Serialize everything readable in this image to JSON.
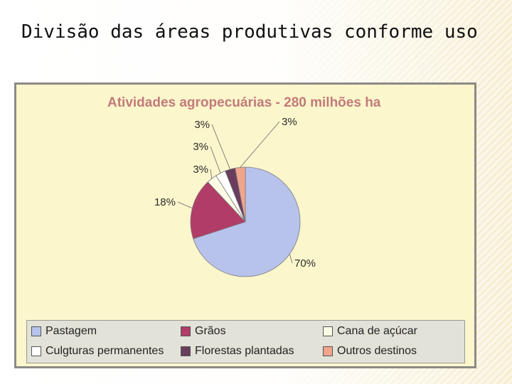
{
  "slide": {
    "title": "Divisão das áreas produtivas conforme uso"
  },
  "chart_data": {
    "type": "pie",
    "title": "Atividades agropecuárias - 280 milhões ha",
    "slices": [
      {
        "label": "Pastagem",
        "value": 70,
        "value_label": "70%",
        "color": "#b8c3ec"
      },
      {
        "label": "Grãos",
        "value": 18,
        "value_label": "18%",
        "color": "#b23c68"
      },
      {
        "label": "Cana de açúcar",
        "value": 3,
        "value_label": "3%",
        "color": "#fdfde6"
      },
      {
        "label": "Culgturas permanentes",
        "value": 3,
        "value_label": "3%",
        "color": "#ffffff"
      },
      {
        "label": "Florestas plantadas",
        "value": 3,
        "value_label": "3%",
        "color": "#6a3d5e"
      },
      {
        "label": "Outros destinos",
        "value": 3,
        "value_label": "3%",
        "color": "#f1a58c"
      }
    ],
    "legend_position": "bottom"
  }
}
